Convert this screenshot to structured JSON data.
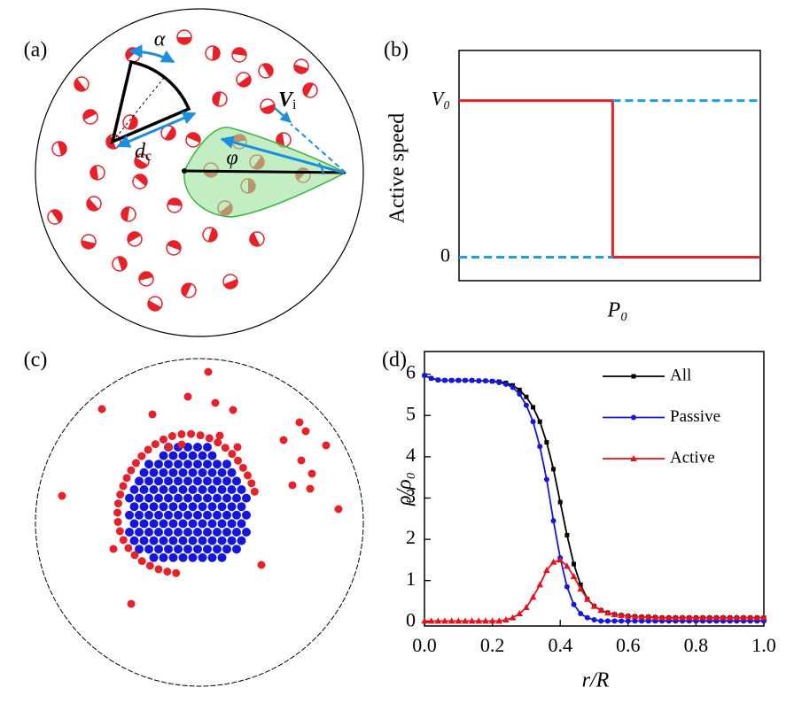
{
  "panel_a": {
    "label": "(a)",
    "alpha": "α",
    "phi": "φ",
    "dc": {
      "main": "d",
      "sub": "c"
    },
    "vi": {
      "main": "V",
      "sub": "i"
    }
  },
  "panel_c": {
    "label": "(c)"
  },
  "chart_data": [
    {
      "type": "line",
      "label": "(b)",
      "ylabel": "Active speed",
      "xlabel": "P₀",
      "xlim": [
        0,
        1
      ],
      "ylim": [
        -0.15,
        1.32
      ],
      "yticks": [
        0,
        {
          "value": 1,
          "label": "V₀"
        }
      ],
      "series": [
        {
          "color": "#e8202a",
          "dash": false,
          "x": [
            0,
            0.51,
            0.51,
            1
          ],
          "values": [
            1,
            1,
            0,
            0
          ]
        },
        {
          "color": "#1ba1e2",
          "dash": true,
          "x": [
            0,
            0.51,
            0.51,
            0.51,
            1
          ],
          "values": [
            0,
            0,
            null,
            1,
            1
          ]
        }
      ]
    },
    {
      "type": "line",
      "label": "(d)",
      "ylabel": "ρ/ρ₀",
      "xlabel": "r/R",
      "xlim": [
        0,
        1
      ],
      "ylim": [
        -0.1,
        6.55
      ],
      "tick_marks": true,
      "legend": "upper right",
      "xticks": [
        {
          "value": 0,
          "label": "0.0"
        },
        {
          "value": 0.2,
          "label": "0.2"
        },
        {
          "value": 0.4,
          "label": "0.4"
        },
        {
          "value": 0.6,
          "label": "0.6"
        },
        {
          "value": 0.8,
          "label": "0.8"
        },
        {
          "value": 1,
          "label": "1.0"
        }
      ],
      "yticks": [
        0,
        1,
        2,
        3,
        4,
        5,
        6
      ],
      "x": [
        0,
        0.02,
        0.04,
        0.06,
        0.08,
        0.1,
        0.12,
        0.14,
        0.16,
        0.18,
        0.2,
        0.22,
        0.24,
        0.26,
        0.28,
        0.3,
        0.32,
        0.34,
        0.36,
        0.38,
        0.4,
        0.42,
        0.44,
        0.46,
        0.48,
        0.5,
        0.52,
        0.54,
        0.56,
        0.58,
        0.6,
        0.62,
        0.64,
        0.66,
        0.68,
        0.7,
        0.72,
        0.74,
        0.76,
        0.78,
        0.8,
        0.82,
        0.84,
        0.86,
        0.88,
        0.9,
        0.92,
        0.94,
        0.96,
        0.98,
        1
      ],
      "series": [
        {
          "name": "All",
          "color": "#000000",
          "marker": "square",
          "values": [
            5.97,
            5.9,
            5.86,
            5.85,
            5.85,
            5.85,
            5.85,
            5.85,
            5.84,
            5.84,
            5.83,
            5.82,
            5.79,
            5.73,
            5.62,
            5.45,
            5.2,
            4.85,
            4.35,
            3.7,
            2.9,
            2.1,
            1.4,
            0.9,
            0.55,
            0.38,
            0.28,
            0.22,
            0.18,
            0.16,
            0.14,
            0.13,
            0.12,
            0.12,
            0.11,
            0.1,
            0.1,
            0.1,
            0.1,
            0.1,
            0.1,
            0.1,
            0.1,
            0.1,
            0.1,
            0.1,
            0.1,
            0.1,
            0.1,
            0.1,
            0.1
          ]
        },
        {
          "name": "Passive",
          "color": "#1515e0",
          "marker": "circle",
          "values": [
            5.97,
            5.9,
            5.86,
            5.85,
            5.85,
            5.85,
            5.85,
            5.85,
            5.84,
            5.84,
            5.83,
            5.8,
            5.76,
            5.68,
            5.52,
            5.25,
            4.85,
            4.25,
            3.45,
            2.45,
            1.55,
            0.85,
            0.42,
            0.2,
            0.1,
            0.05,
            0.02,
            0.02,
            0.02,
            0.02,
            0.02,
            0.02,
            0.02,
            0.02,
            0.02,
            0.02,
            0.02,
            0.02,
            0.02,
            0.02,
            0.02,
            0.02,
            0.02,
            0.02,
            0.02,
            0.02,
            0.02,
            0.02,
            0.02,
            0.02,
            0.02
          ]
        },
        {
          "name": "Active",
          "color": "#e8101a",
          "marker": "triangle",
          "values": [
            0.02,
            0.02,
            0.02,
            0.02,
            0.02,
            0.02,
            0.02,
            0.02,
            0.02,
            0.02,
            0.02,
            0.02,
            0.05,
            0.1,
            0.2,
            0.35,
            0.6,
            0.9,
            1.25,
            1.45,
            1.5,
            1.35,
            1.1,
            0.8,
            0.55,
            0.38,
            0.28,
            0.22,
            0.18,
            0.16,
            0.14,
            0.13,
            0.12,
            0.12,
            0.11,
            0.1,
            0.1,
            0.1,
            0.1,
            0.1,
            0.1,
            0.1,
            0.1,
            0.1,
            0.1,
            0.1,
            0.1,
            0.1,
            0.1,
            0.1,
            0.1
          ]
        }
      ]
    }
  ]
}
